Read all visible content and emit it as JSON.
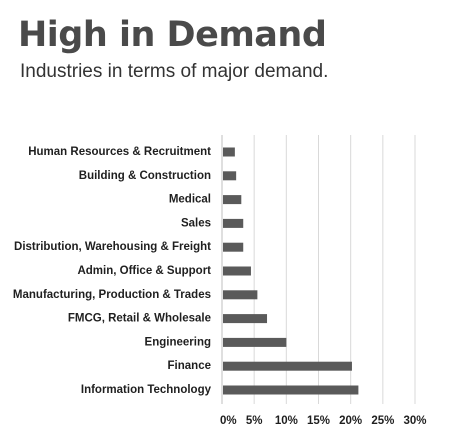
{
  "header": {
    "title": "High in Demand",
    "subtitle": "Industries in terms of major demand."
  },
  "colors": {
    "bar": "#5a5a5a",
    "grid": "#d9d9d9",
    "axis": "#bfbfbf",
    "text": "#1f1f1f"
  },
  "chart_data": {
    "type": "bar",
    "orientation": "horizontal",
    "categories": [
      "Human Resources & Recruitment",
      "Building & Construction",
      "Medical",
      "Sales",
      "Distribution, Warehousing & Freight",
      "Admin, Office & Support",
      "Manufacturing, Production & Trades",
      "FMCG, Retail & Wholesale",
      "Engineering",
      "Finance",
      "Information Technology"
    ],
    "values": [
      2,
      2.2,
      3,
      3.3,
      3.3,
      4.5,
      5.5,
      7,
      10,
      20.2,
      21.2
    ],
    "xticks": [
      "0%",
      "5%",
      "10%",
      "15%",
      "20%",
      "25%",
      "30%"
    ],
    "xlim": [
      0,
      30
    ],
    "grid": true
  }
}
